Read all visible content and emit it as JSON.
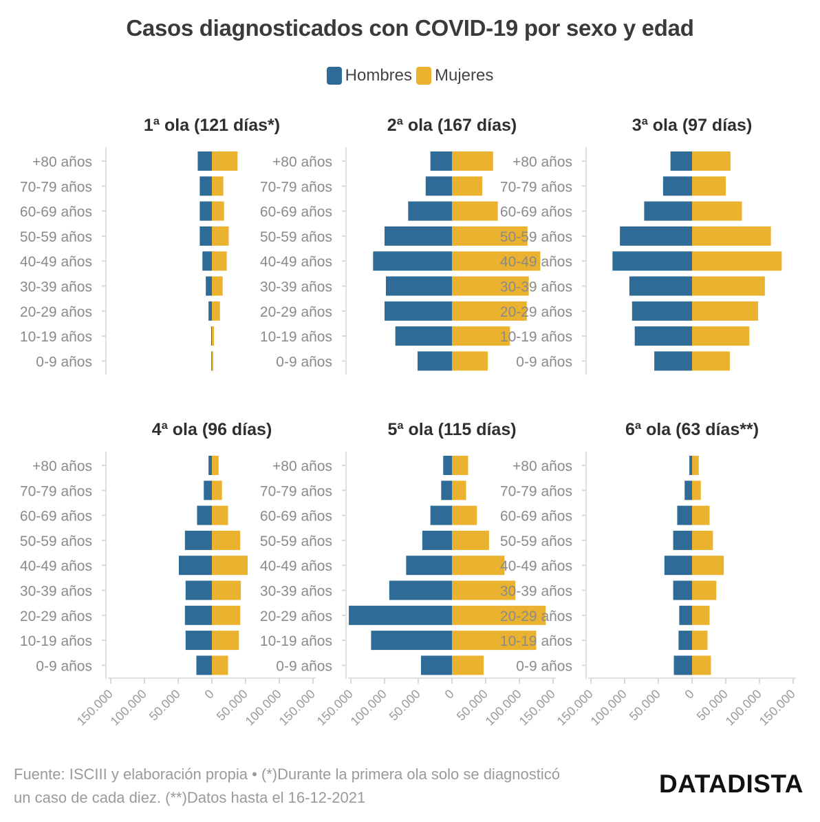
{
  "title": "Casos diagnosticados con COVID-19 por sexo y edad",
  "legend": [
    {
      "label": "Hombres",
      "color": "#2e6b96"
    },
    {
      "label": "Mujeres",
      "color": "#ebb22f"
    }
  ],
  "footer": "Fuente: ISCIII y elaboración propia • (*)Durante la primera ola solo se diagnosticó un caso de cada diez. (**)Datos hasta el 16-12-2021",
  "brand": "DATADISTA",
  "chart_data": [
    {
      "type": "bar",
      "title": "1ª ola (121 días*)",
      "categories": [
        "+80 años",
        "70-79 años",
        "60-69 años",
        "50-59 años",
        "40-49 años",
        "30-39 años",
        "20-29 años",
        "10-19 años",
        "0-9 años"
      ],
      "series": [
        {
          "name": "Hombres",
          "values": [
            21000,
            18000,
            18000,
            18000,
            14000,
            9000,
            5000,
            1000,
            500
          ]
        },
        {
          "name": "Mujeres",
          "values": [
            38000,
            17000,
            18000,
            25000,
            22000,
            16000,
            12000,
            3000,
            2000
          ]
        }
      ],
      "xlim": [
        -150000,
        150000
      ]
    },
    {
      "type": "bar",
      "title": "2ª ola (167 días)",
      "categories": [
        "+80 años",
        "70-79 años",
        "60-69 años",
        "50-59 años",
        "40-49 años",
        "30-39 años",
        "20-29 años",
        "10-19 años",
        "0-9 años"
      ],
      "series": [
        {
          "name": "Hombres",
          "values": [
            32000,
            39000,
            65000,
            100000,
            117000,
            98000,
            100000,
            84000,
            51000
          ]
        },
        {
          "name": "Mujeres",
          "values": [
            61000,
            45000,
            68000,
            112000,
            131000,
            114000,
            111000,
            86000,
            53000
          ]
        }
      ],
      "xlim": [
        -150000,
        150000
      ]
    },
    {
      "type": "bar",
      "title": "3ª ola (97 días)",
      "categories": [
        "+80 años",
        "70-79 años",
        "60-69 años",
        "50-59 años",
        "40-49 años",
        "30-39 años",
        "20-29 años",
        "10-19 años",
        "0-9 años"
      ],
      "series": [
        {
          "name": "Hombres",
          "values": [
            32000,
            43000,
            71000,
            107000,
            118000,
            93000,
            89000,
            85000,
            56000
          ]
        },
        {
          "name": "Mujeres",
          "values": [
            57000,
            50000,
            74000,
            117000,
            133000,
            108000,
            98000,
            85000,
            56000
          ]
        }
      ],
      "xlim": [
        -150000,
        150000
      ]
    },
    {
      "type": "bar",
      "title": "4ª ola (96 días)",
      "categories": [
        "+80 años",
        "70-79 años",
        "60-69 años",
        "50-59 años",
        "40-49 años",
        "30-39 años",
        "20-29 años",
        "10-19 años",
        "0-9 años"
      ],
      "series": [
        {
          "name": "Hombres",
          "values": [
            5000,
            12000,
            22000,
            40000,
            49000,
            39000,
            40000,
            39000,
            23000
          ]
        },
        {
          "name": "Mujeres",
          "values": [
            10000,
            15000,
            24000,
            42000,
            53000,
            43000,
            42000,
            40000,
            24000
          ]
        }
      ],
      "xlim": [
        -150000,
        150000
      ]
    },
    {
      "type": "bar",
      "title": "5ª ola (115 días)",
      "categories": [
        "+80 años",
        "70-79 años",
        "60-69 años",
        "50-59 años",
        "40-49 años",
        "30-39 años",
        "20-29 años",
        "10-19 años",
        "0-9 años"
      ],
      "series": [
        {
          "name": "Hombres",
          "values": [
            13000,
            16000,
            32000,
            44000,
            68000,
            93000,
            153000,
            120000,
            46000
          ]
        },
        {
          "name": "Mujeres",
          "values": [
            24000,
            21000,
            37000,
            55000,
            78000,
            94000,
            139000,
            125000,
            47000
          ]
        }
      ],
      "xlim": [
        -150000,
        150000
      ]
    },
    {
      "type": "bar",
      "title": "6ª ola (63 días**)",
      "categories": [
        "+80 años",
        "70-79 años",
        "60-69 años",
        "50-59 años",
        "40-49 años",
        "30-39 años",
        "20-29 años",
        "10-19 años",
        "0-9 años"
      ],
      "series": [
        {
          "name": "Hombres",
          "values": [
            4000,
            11000,
            22000,
            28000,
            41000,
            28000,
            19000,
            20000,
            27000
          ]
        },
        {
          "name": "Mujeres",
          "values": [
            10000,
            13000,
            26000,
            31000,
            47000,
            36000,
            26000,
            23000,
            28000
          ]
        }
      ],
      "xlim": [
        -150000,
        150000
      ]
    }
  ],
  "ticks": [
    "150.000",
    "100.000",
    "50.000",
    "0",
    "50.000",
    "100.000",
    "150.000"
  ]
}
